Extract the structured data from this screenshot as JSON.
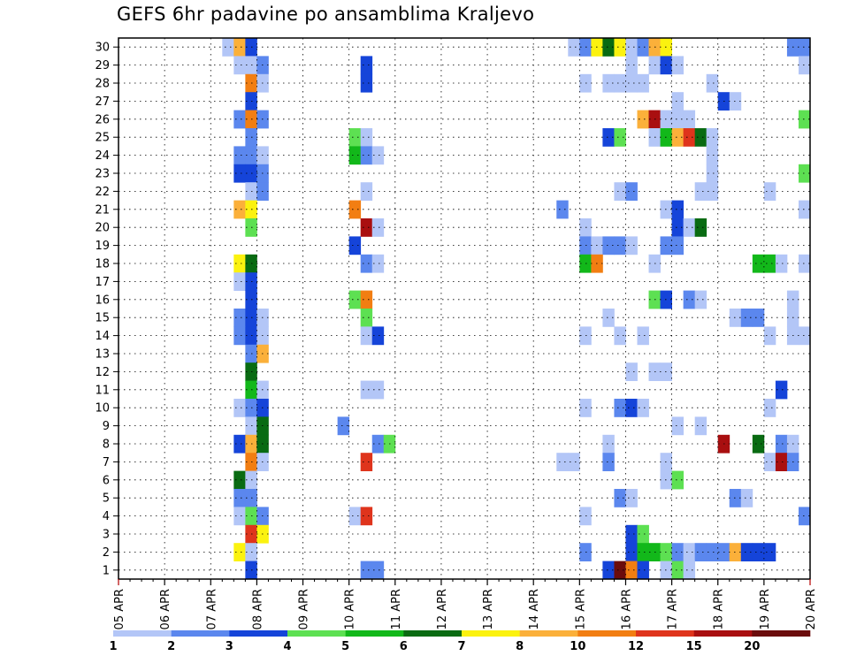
{
  "chart_data": {
    "type": "heatmap",
    "title": "GEFS 6hr padavine po ansamblima Kraljevo",
    "xlabel": "",
    "ylabel": "",
    "x_ticks": [
      "05 APR",
      "06 APR",
      "07 APR",
      "08 APR",
      "09 APR",
      "10 APR",
      "11 APR",
      "12 APR",
      "13 APR",
      "14 APR",
      "15 APR",
      "16 APR",
      "17 APR",
      "18 APR",
      "19 APR",
      "20 APR"
    ],
    "y_ticks": [
      "1",
      "2",
      "3",
      "4",
      "5",
      "6",
      "7",
      "8",
      "9",
      "10",
      "11",
      "12",
      "13",
      "14",
      "15",
      "16",
      "17",
      "18",
      "19",
      "20",
      "21",
      "22",
      "23",
      "24",
      "25",
      "26",
      "27",
      "28",
      "29",
      "30"
    ],
    "x_range": [
      "05 APR 00Z",
      "20 APR 00Z"
    ],
    "time_step_hours": 6,
    "members": 30,
    "grid": true,
    "legend": {
      "position": "bottom",
      "labels": [
        "1",
        "2",
        "3",
        "4",
        "5",
        "6",
        "7",
        "8",
        "10",
        "12",
        "15",
        "20"
      ],
      "colors": [
        "#b3c6f7",
        "#5b87ee",
        "#1544d9",
        "#5de052",
        "#12b81a",
        "#096b12",
        "#fbf20f",
        "#fbb03a",
        "#f27e12",
        "#df341c",
        "#a90f10",
        "#6b0c0c"
      ]
    },
    "colors": {
      "1": "#b3c6f7",
      "2": "#5b87ee",
      "3": "#1544d9",
      "4": "#5de052",
      "5": "#12b81a",
      "6": "#096b12",
      "7": "#fbf20f",
      "8": "#fbb03a",
      "10": "#f27e12",
      "12": "#df341c",
      "15": "#a90f10",
      "20": "#6b0c0c"
    },
    "cells": [
      {
        "member": 30,
        "step": 9,
        "class": 1
      },
      {
        "member": 30,
        "step": 10,
        "class": 8
      },
      {
        "member": 30,
        "step": 11,
        "class": 3
      },
      {
        "member": 30,
        "step": 39,
        "class": 1
      },
      {
        "member": 30,
        "step": 40,
        "class": 2
      },
      {
        "member": 30,
        "step": 41,
        "class": 7
      },
      {
        "member": 30,
        "step": 42,
        "class": 6
      },
      {
        "member": 30,
        "step": 43,
        "class": 7
      },
      {
        "member": 30,
        "step": 44,
        "class": 1
      },
      {
        "member": 30,
        "step": 45,
        "class": 2
      },
      {
        "member": 30,
        "step": 46,
        "class": 8
      },
      {
        "member": 30,
        "step": 47,
        "class": 7
      },
      {
        "member": 30,
        "step": 58,
        "class": 2
      },
      {
        "member": 30,
        "step": 59,
        "class": 2
      },
      {
        "member": 29,
        "step": 10,
        "class": 1
      },
      {
        "member": 29,
        "step": 11,
        "class": 1
      },
      {
        "member": 29,
        "step": 12,
        "class": 2
      },
      {
        "member": 29,
        "step": 21,
        "class": 3
      },
      {
        "member": 29,
        "step": 44,
        "class": 1
      },
      {
        "member": 29,
        "step": 46,
        "class": 1
      },
      {
        "member": 29,
        "step": 47,
        "class": 3
      },
      {
        "member": 29,
        "step": 48,
        "class": 1
      },
      {
        "member": 29,
        "step": 59,
        "class": 1
      },
      {
        "member": 28,
        "step": 11,
        "class": 10
      },
      {
        "member": 28,
        "step": 12,
        "class": 1
      },
      {
        "member": 28,
        "step": 21,
        "class": 3
      },
      {
        "member": 28,
        "step": 40,
        "class": 1
      },
      {
        "member": 28,
        "step": 42,
        "class": 1
      },
      {
        "member": 28,
        "step": 43,
        "class": 1
      },
      {
        "member": 28,
        "step": 44,
        "class": 1
      },
      {
        "member": 28,
        "step": 45,
        "class": 1
      },
      {
        "member": 28,
        "step": 51,
        "class": 1
      },
      {
        "member": 27,
        "step": 11,
        "class": 3
      },
      {
        "member": 27,
        "step": 48,
        "class": 1
      },
      {
        "member": 27,
        "step": 52,
        "class": 3
      },
      {
        "member": 27,
        "step": 53,
        "class": 1
      },
      {
        "member": 26,
        "step": 10,
        "class": 2
      },
      {
        "member": 26,
        "step": 11,
        "class": 10
      },
      {
        "member": 26,
        "step": 12,
        "class": 2
      },
      {
        "member": 26,
        "step": 45,
        "class": 8
      },
      {
        "member": 26,
        "step": 46,
        "class": 15
      },
      {
        "member": 26,
        "step": 47,
        "class": 1
      },
      {
        "member": 26,
        "step": 48,
        "class": 1
      },
      {
        "member": 26,
        "step": 49,
        "class": 1
      },
      {
        "member": 26,
        "step": 59,
        "class": 4
      },
      {
        "member": 25,
        "step": 11,
        "class": 2
      },
      {
        "member": 25,
        "step": 20,
        "class": 4
      },
      {
        "member": 25,
        "step": 21,
        "class": 1
      },
      {
        "member": 25,
        "step": 42,
        "class": 3
      },
      {
        "member": 25,
        "step": 43,
        "class": 4
      },
      {
        "member": 25,
        "step": 46,
        "class": 1
      },
      {
        "member": 25,
        "step": 47,
        "class": 5
      },
      {
        "member": 25,
        "step": 48,
        "class": 8
      },
      {
        "member": 25,
        "step": 49,
        "class": 12
      },
      {
        "member": 25,
        "step": 50,
        "class": 6
      },
      {
        "member": 25,
        "step": 51,
        "class": 1
      },
      {
        "member": 24,
        "step": 10,
        "class": 2
      },
      {
        "member": 24,
        "step": 11,
        "class": 2
      },
      {
        "member": 24,
        "step": 12,
        "class": 1
      },
      {
        "member": 24,
        "step": 20,
        "class": 5
      },
      {
        "member": 24,
        "step": 21,
        "class": 2
      },
      {
        "member": 24,
        "step": 22,
        "class": 1
      },
      {
        "member": 24,
        "step": 51,
        "class": 1
      },
      {
        "member": 23,
        "step": 10,
        "class": 3
      },
      {
        "member": 23,
        "step": 11,
        "class": 3
      },
      {
        "member": 23,
        "step": 12,
        "class": 2
      },
      {
        "member": 23,
        "step": 51,
        "class": 1
      },
      {
        "member": 23,
        "step": 59,
        "class": 4
      },
      {
        "member": 22,
        "step": 11,
        "class": 1
      },
      {
        "member": 22,
        "step": 12,
        "class": 2
      },
      {
        "member": 22,
        "step": 21,
        "class": 1
      },
      {
        "member": 22,
        "step": 43,
        "class": 1
      },
      {
        "member": 22,
        "step": 44,
        "class": 2
      },
      {
        "member": 22,
        "step": 50,
        "class": 1
      },
      {
        "member": 22,
        "step": 51,
        "class": 1
      },
      {
        "member": 22,
        "step": 56,
        "class": 1
      },
      {
        "member": 21,
        "step": 10,
        "class": 8
      },
      {
        "member": 21,
        "step": 11,
        "class": 7
      },
      {
        "member": 21,
        "step": 20,
        "class": 10
      },
      {
        "member": 21,
        "step": 38,
        "class": 2
      },
      {
        "member": 21,
        "step": 47,
        "class": 1
      },
      {
        "member": 21,
        "step": 48,
        "class": 3
      },
      {
        "member": 21,
        "step": 59,
        "class": 1
      },
      {
        "member": 20,
        "step": 11,
        "class": 4
      },
      {
        "member": 20,
        "step": 21,
        "class": 15
      },
      {
        "member": 20,
        "step": 22,
        "class": 1
      },
      {
        "member": 20,
        "step": 40,
        "class": 1
      },
      {
        "member": 20,
        "step": 48,
        "class": 3
      },
      {
        "member": 20,
        "step": 49,
        "class": 1
      },
      {
        "member": 20,
        "step": 50,
        "class": 6
      },
      {
        "member": 19,
        "step": 20,
        "class": 3
      },
      {
        "member": 19,
        "step": 40,
        "class": 2
      },
      {
        "member": 19,
        "step": 41,
        "class": 1
      },
      {
        "member": 19,
        "step": 42,
        "class": 2
      },
      {
        "member": 19,
        "step": 43,
        "class": 2
      },
      {
        "member": 19,
        "step": 44,
        "class": 1
      },
      {
        "member": 19,
        "step": 47,
        "class": 2
      },
      {
        "member": 19,
        "step": 48,
        "class": 2
      },
      {
        "member": 18,
        "step": 10,
        "class": 7
      },
      {
        "member": 18,
        "step": 11,
        "class": 6
      },
      {
        "member": 18,
        "step": 21,
        "class": 2
      },
      {
        "member": 18,
        "step": 22,
        "class": 1
      },
      {
        "member": 18,
        "step": 40,
        "class": 5
      },
      {
        "member": 18,
        "step": 41,
        "class": 10
      },
      {
        "member": 18,
        "step": 46,
        "class": 1
      },
      {
        "member": 18,
        "step": 55,
        "class": 5
      },
      {
        "member": 18,
        "step": 56,
        "class": 5
      },
      {
        "member": 18,
        "step": 57,
        "class": 1
      },
      {
        "member": 18,
        "step": 59,
        "class": 1
      },
      {
        "member": 17,
        "step": 10,
        "class": 1
      },
      {
        "member": 17,
        "step": 11,
        "class": 3
      },
      {
        "member": 16,
        "step": 11,
        "class": 3
      },
      {
        "member": 16,
        "step": 20,
        "class": 4
      },
      {
        "member": 16,
        "step": 21,
        "class": 10
      },
      {
        "member": 16,
        "step": 46,
        "class": 4
      },
      {
        "member": 16,
        "step": 47,
        "class": 3
      },
      {
        "member": 16,
        "step": 49,
        "class": 2
      },
      {
        "member": 16,
        "step": 50,
        "class": 1
      },
      {
        "member": 16,
        "step": 58,
        "class": 1
      },
      {
        "member": 15,
        "step": 10,
        "class": 2
      },
      {
        "member": 15,
        "step": 11,
        "class": 3
      },
      {
        "member": 15,
        "step": 12,
        "class": 1
      },
      {
        "member": 15,
        "step": 21,
        "class": 4
      },
      {
        "member": 15,
        "step": 42,
        "class": 1
      },
      {
        "member": 15,
        "step": 53,
        "class": 1
      },
      {
        "member": 15,
        "step": 54,
        "class": 2
      },
      {
        "member": 15,
        "step": 55,
        "class": 2
      },
      {
        "member": 15,
        "step": 58,
        "class": 1
      },
      {
        "member": 14,
        "step": 10,
        "class": 2
      },
      {
        "member": 14,
        "step": 11,
        "class": 3
      },
      {
        "member": 14,
        "step": 12,
        "class": 1
      },
      {
        "member": 14,
        "step": 21,
        "class": 1
      },
      {
        "member": 14,
        "step": 22,
        "class": 3
      },
      {
        "member": 14,
        "step": 40,
        "class": 1
      },
      {
        "member": 14,
        "step": 43,
        "class": 1
      },
      {
        "member": 14,
        "step": 45,
        "class": 1
      },
      {
        "member": 14,
        "step": 56,
        "class": 1
      },
      {
        "member": 14,
        "step": 58,
        "class": 1
      },
      {
        "member": 14,
        "step": 59,
        "class": 1
      },
      {
        "member": 13,
        "step": 11,
        "class": 2
      },
      {
        "member": 13,
        "step": 12,
        "class": 8
      },
      {
        "member": 12,
        "step": 11,
        "class": 6
      },
      {
        "member": 12,
        "step": 44,
        "class": 1
      },
      {
        "member": 12,
        "step": 46,
        "class": 1
      },
      {
        "member": 12,
        "step": 47,
        "class": 1
      },
      {
        "member": 11,
        "step": 11,
        "class": 5
      },
      {
        "member": 11,
        "step": 12,
        "class": 1
      },
      {
        "member": 11,
        "step": 21,
        "class": 1
      },
      {
        "member": 11,
        "step": 22,
        "class": 1
      },
      {
        "member": 11,
        "step": 57,
        "class": 3
      },
      {
        "member": 10,
        "step": 10,
        "class": 1
      },
      {
        "member": 10,
        "step": 11,
        "class": 2
      },
      {
        "member": 10,
        "step": 12,
        "class": 3
      },
      {
        "member": 10,
        "step": 40,
        "class": 1
      },
      {
        "member": 10,
        "step": 43,
        "class": 2
      },
      {
        "member": 10,
        "step": 44,
        "class": 3
      },
      {
        "member": 10,
        "step": 45,
        "class": 1
      },
      {
        "member": 10,
        "step": 56,
        "class": 1
      },
      {
        "member": 9,
        "step": 11,
        "class": 1
      },
      {
        "member": 9,
        "step": 12,
        "class": 6
      },
      {
        "member": 9,
        "step": 19,
        "class": 2
      },
      {
        "member": 9,
        "step": 48,
        "class": 1
      },
      {
        "member": 9,
        "step": 50,
        "class": 1
      },
      {
        "member": 8,
        "step": 10,
        "class": 3
      },
      {
        "member": 8,
        "step": 11,
        "class": 8
      },
      {
        "member": 8,
        "step": 12,
        "class": 6
      },
      {
        "member": 8,
        "step": 22,
        "class": 2
      },
      {
        "member": 8,
        "step": 23,
        "class": 4
      },
      {
        "member": 8,
        "step": 42,
        "class": 1
      },
      {
        "member": 8,
        "step": 52,
        "class": 15
      },
      {
        "member": 8,
        "step": 55,
        "class": 6
      },
      {
        "member": 8,
        "step": 57,
        "class": 2
      },
      {
        "member": 8,
        "step": 58,
        "class": 1
      },
      {
        "member": 7,
        "step": 11,
        "class": 10
      },
      {
        "member": 7,
        "step": 12,
        "class": 1
      },
      {
        "member": 7,
        "step": 21,
        "class": 12
      },
      {
        "member": 7,
        "step": 38,
        "class": 1
      },
      {
        "member": 7,
        "step": 39,
        "class": 1
      },
      {
        "member": 7,
        "step": 42,
        "class": 2
      },
      {
        "member": 7,
        "step": 47,
        "class": 1
      },
      {
        "member": 7,
        "step": 56,
        "class": 1
      },
      {
        "member": 7,
        "step": 57,
        "class": 15
      },
      {
        "member": 7,
        "step": 58,
        "class": 2
      },
      {
        "member": 6,
        "step": 10,
        "class": 6
      },
      {
        "member": 6,
        "step": 11,
        "class": 1
      },
      {
        "member": 6,
        "step": 47,
        "class": 1
      },
      {
        "member": 6,
        "step": 48,
        "class": 4
      },
      {
        "member": 5,
        "step": 10,
        "class": 2
      },
      {
        "member": 5,
        "step": 11,
        "class": 2
      },
      {
        "member": 5,
        "step": 43,
        "class": 2
      },
      {
        "member": 5,
        "step": 44,
        "class": 1
      },
      {
        "member": 5,
        "step": 53,
        "class": 2
      },
      {
        "member": 5,
        "step": 54,
        "class": 1
      },
      {
        "member": 4,
        "step": 10,
        "class": 1
      },
      {
        "member": 4,
        "step": 11,
        "class": 4
      },
      {
        "member": 4,
        "step": 12,
        "class": 2
      },
      {
        "member": 4,
        "step": 20,
        "class": 1
      },
      {
        "member": 4,
        "step": 21,
        "class": 12
      },
      {
        "member": 4,
        "step": 40,
        "class": 1
      },
      {
        "member": 4,
        "step": 59,
        "class": 2
      },
      {
        "member": 3,
        "step": 11,
        "class": 12
      },
      {
        "member": 3,
        "step": 12,
        "class": 7
      },
      {
        "member": 3,
        "step": 44,
        "class": 3
      },
      {
        "member": 3,
        "step": 45,
        "class": 4
      },
      {
        "member": 2,
        "step": 10,
        "class": 7
      },
      {
        "member": 2,
        "step": 11,
        "class": 1
      },
      {
        "member": 2,
        "step": 40,
        "class": 2
      },
      {
        "member": 2,
        "step": 44,
        "class": 3
      },
      {
        "member": 2,
        "step": 45,
        "class": 5
      },
      {
        "member": 2,
        "step": 46,
        "class": 5
      },
      {
        "member": 2,
        "step": 47,
        "class": 4
      },
      {
        "member": 2,
        "step": 48,
        "class": 2
      },
      {
        "member": 2,
        "step": 49,
        "class": 1
      },
      {
        "member": 2,
        "step": 50,
        "class": 2
      },
      {
        "member": 2,
        "step": 51,
        "class": 2
      },
      {
        "member": 2,
        "step": 52,
        "class": 2
      },
      {
        "member": 2,
        "step": 53,
        "class": 8
      },
      {
        "member": 2,
        "step": 54,
        "class": 3
      },
      {
        "member": 2,
        "step": 55,
        "class": 3
      },
      {
        "member": 2,
        "step": 56,
        "class": 3
      },
      {
        "member": 1,
        "step": 11,
        "class": 3
      },
      {
        "member": 1,
        "step": 21,
        "class": 2
      },
      {
        "member": 1,
        "step": 22,
        "class": 2
      },
      {
        "member": 1,
        "step": 42,
        "class": 3
      },
      {
        "member": 1,
        "step": 43,
        "class": 20
      },
      {
        "member": 1,
        "step": 44,
        "class": 10
      },
      {
        "member": 1,
        "step": 45,
        "class": 3
      },
      {
        "member": 1,
        "step": 47,
        "class": 1
      },
      {
        "member": 1,
        "step": 48,
        "class": 4
      },
      {
        "member": 1,
        "step": 49,
        "class": 1
      }
    ]
  }
}
